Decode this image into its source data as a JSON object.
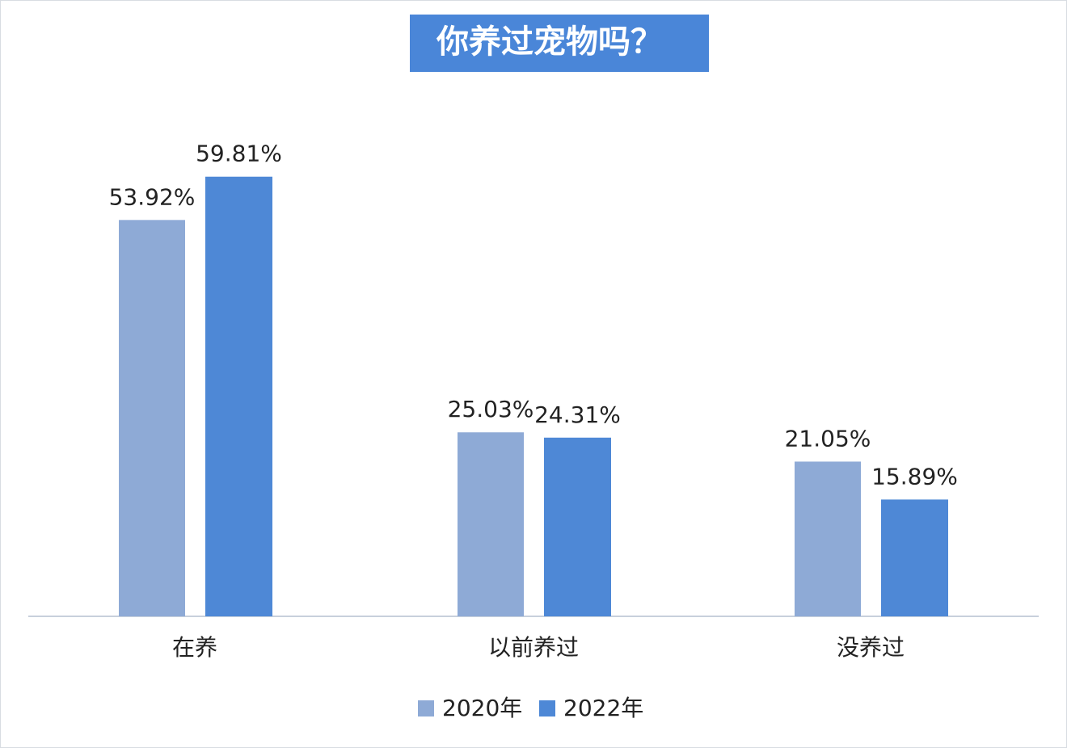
{
  "chart_data": {
    "type": "bar",
    "title": "你养过宠物吗？",
    "categories": [
      "在养",
      "以前养过",
      "没养过"
    ],
    "series": [
      {
        "name": "2020年",
        "color": "#8eaad6",
        "values": [
          53.92,
          25.03,
          21.05
        ],
        "value_labels": [
          "53.92%",
          "25.03%",
          "21.05%"
        ]
      },
      {
        "name": "2022年",
        "color": "#4e88d6",
        "values": [
          59.81,
          24.31,
          15.89
        ],
        "value_labels": [
          "59.81%",
          "24.31%",
          "15.89%"
        ]
      }
    ]
  }
}
